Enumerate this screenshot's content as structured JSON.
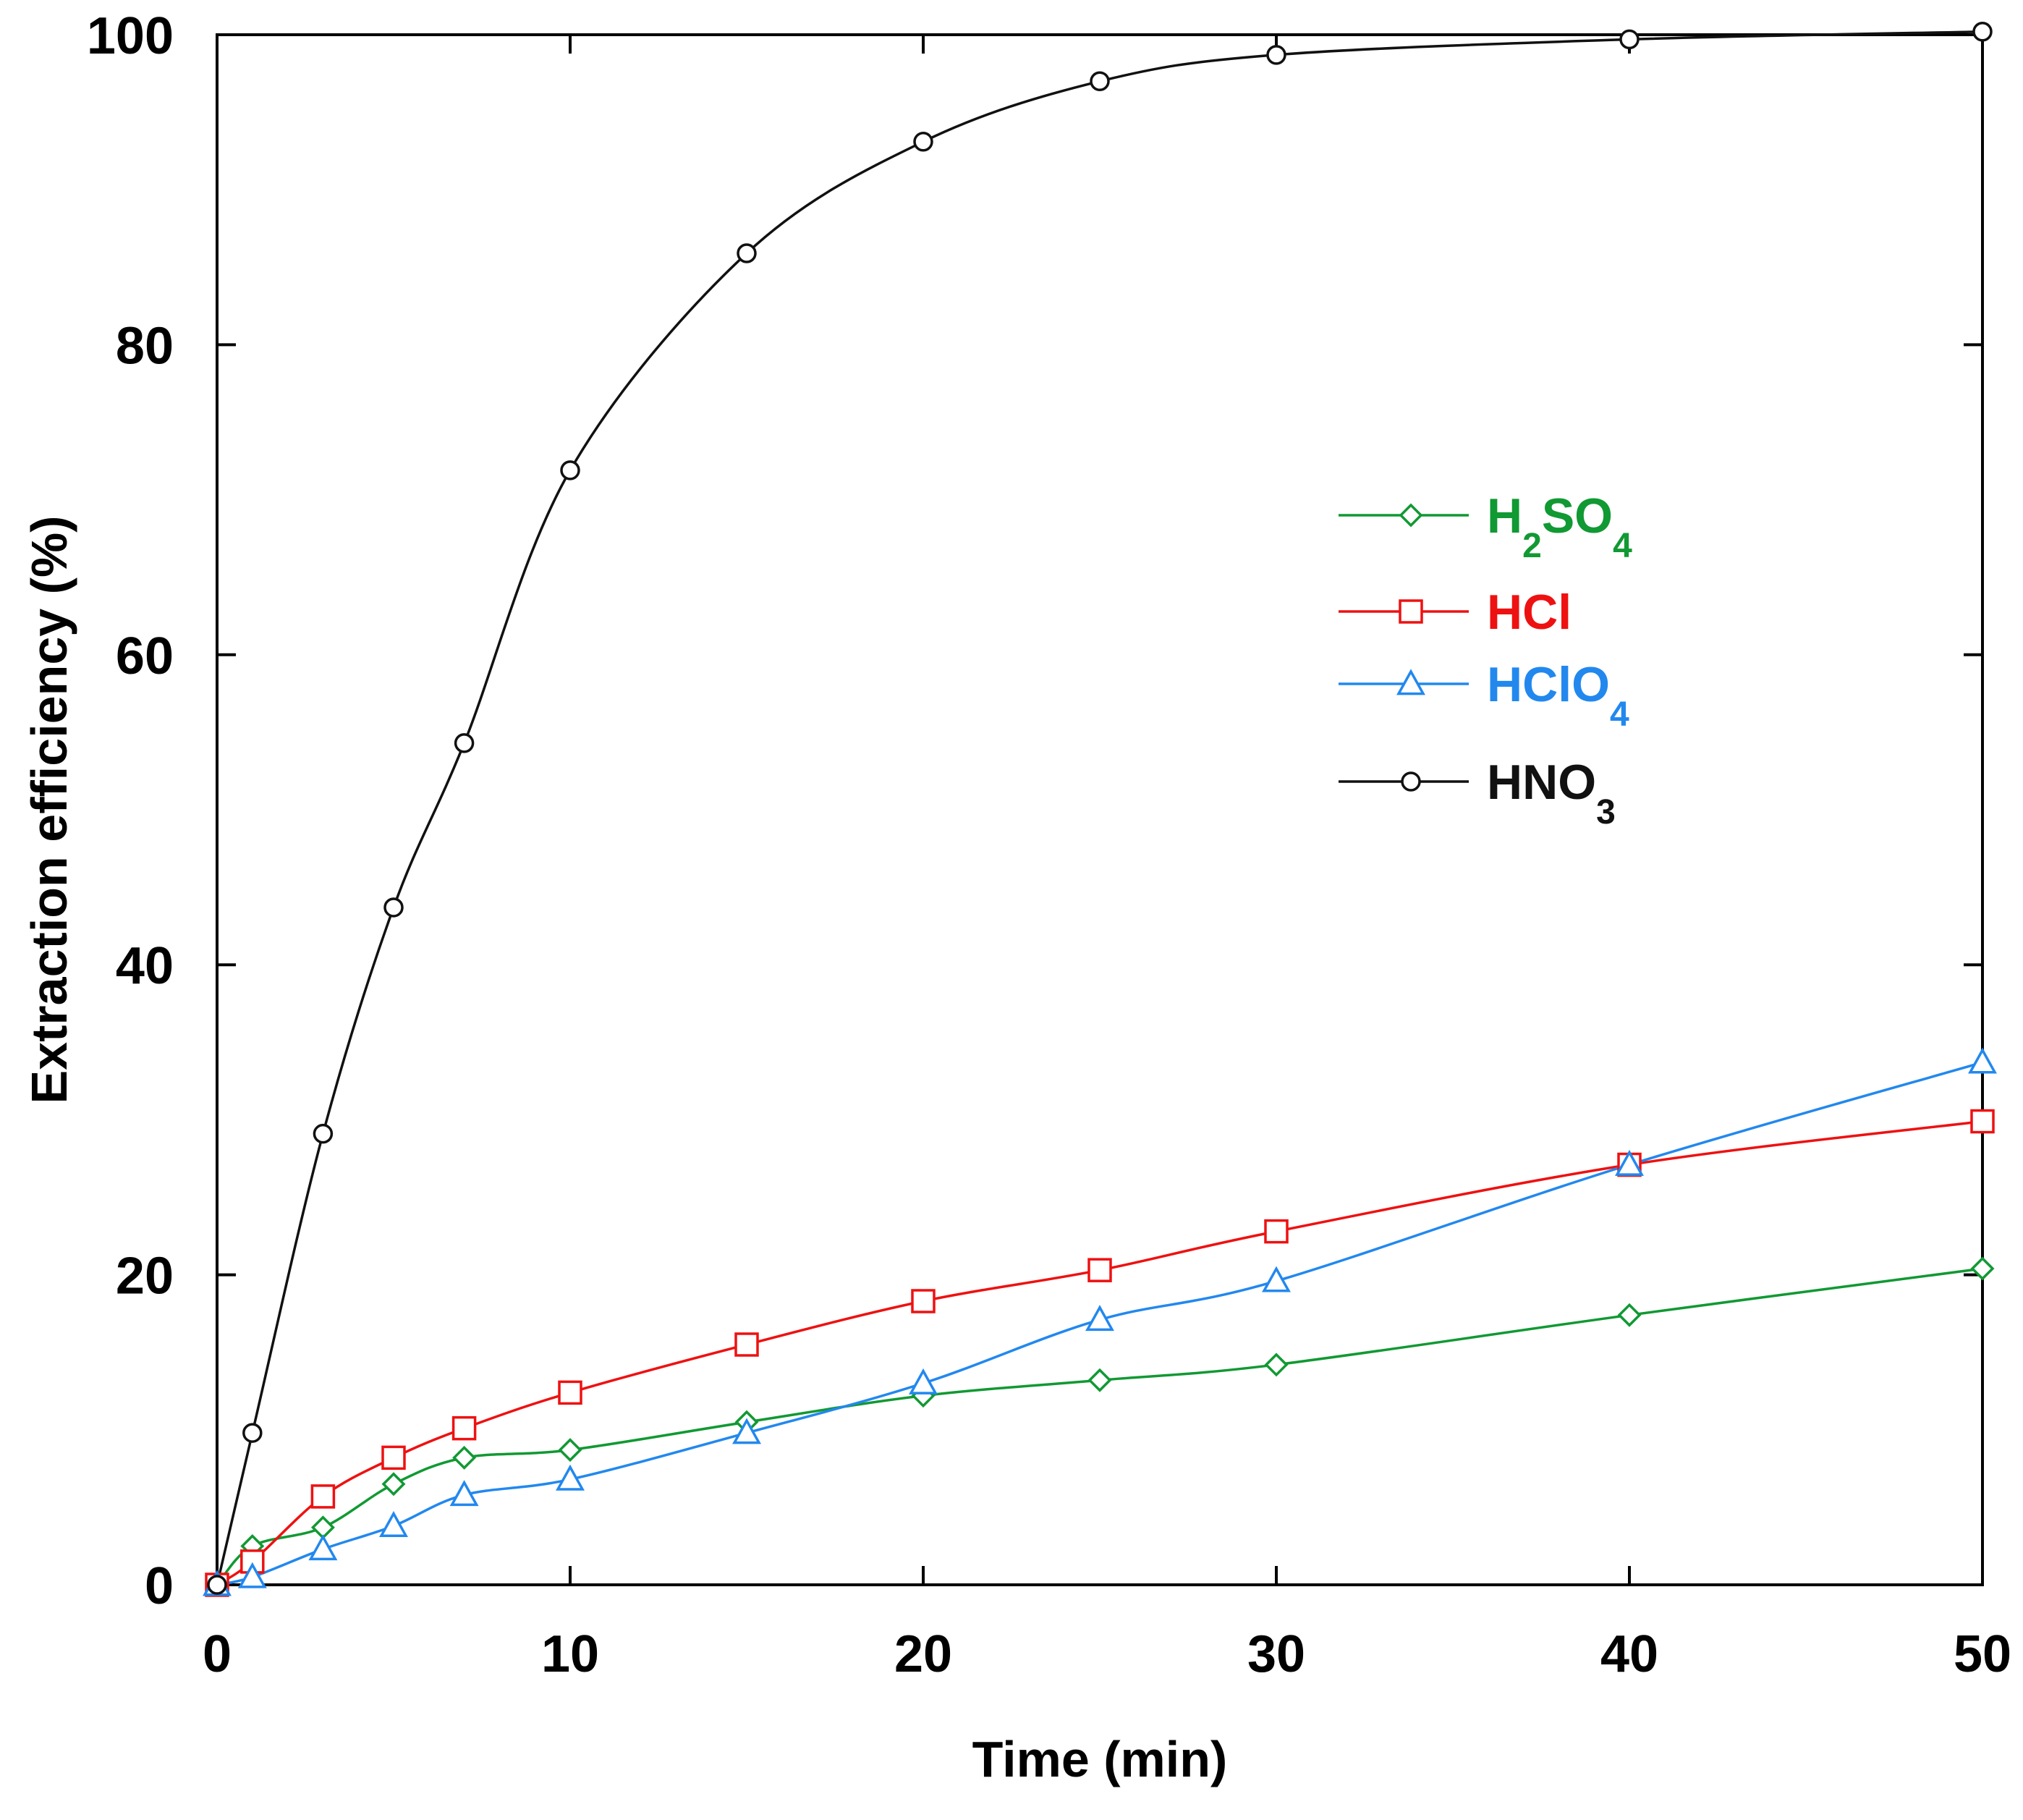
{
  "chart_data": {
    "type": "line",
    "title": "",
    "xlabel": "Time (min)",
    "ylabel": "Extraction efficiency (%)",
    "xlim": [
      0,
      50
    ],
    "ylim": [
      0,
      100
    ],
    "xticks": [
      0,
      10,
      20,
      30,
      40,
      50
    ],
    "yticks": [
      0,
      20,
      40,
      60,
      80,
      100
    ],
    "xtick_labels": [
      "0",
      "10",
      "20",
      "30",
      "40",
      "50"
    ],
    "ytick_labels": [
      "0",
      "20",
      "40",
      "60",
      "80",
      "100"
    ],
    "grid": false,
    "legend_position": "center-right",
    "series": [
      {
        "name": "H2SO4",
        "label_main": "H",
        "label_sub1": "2",
        "label_mid": "SO",
        "label_sub2": "4",
        "color": "#119933",
        "marker": "diamond",
        "x": [
          0,
          1,
          3,
          5,
          7,
          10,
          15,
          20,
          25,
          30,
          40,
          50
        ],
        "y": [
          0,
          2.5,
          3.7,
          6.5,
          8.2,
          8.7,
          10.5,
          12.2,
          13.2,
          14.2,
          17.4,
          20.4
        ]
      },
      {
        "name": "HCl",
        "label_main": "HCl",
        "color": "#ee1111",
        "marker": "square",
        "x": [
          0,
          1,
          3,
          5,
          7,
          10,
          15,
          20,
          25,
          30,
          40,
          50
        ],
        "y": [
          0,
          1.5,
          5.7,
          8.2,
          10.1,
          12.4,
          15.5,
          18.3,
          20.3,
          22.8,
          27.1,
          29.9
        ]
      },
      {
        "name": "HClO4",
        "label_main": "HClO",
        "label_sub1": "4",
        "color": "#2288ee",
        "marker": "triangle",
        "x": [
          0,
          1,
          3,
          5,
          7,
          10,
          15,
          20,
          25,
          30,
          40,
          50
        ],
        "y": [
          0,
          0.5,
          2.3,
          3.8,
          5.8,
          6.8,
          9.8,
          13.0,
          17.1,
          19.6,
          27.1,
          33.7
        ]
      },
      {
        "name": "HNO3",
        "label_main": "HNO",
        "label_sub1": "3",
        "color": "#111111",
        "marker": "circle",
        "x": [
          0,
          1,
          3,
          5,
          7,
          10,
          15,
          20,
          25,
          30,
          40,
          50
        ],
        "y": [
          0,
          9.8,
          29.1,
          43.7,
          54.3,
          71.9,
          85.9,
          93.1,
          97.0,
          98.7,
          99.7,
          100.2
        ]
      }
    ]
  }
}
